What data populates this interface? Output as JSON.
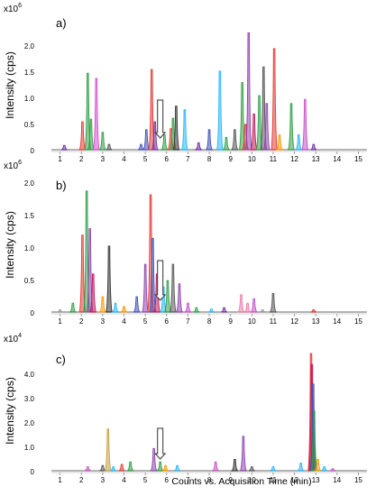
{
  "chart_data": {
    "type": "line",
    "xlabel": "Counts vs. Acquisition Time (min)",
    "x_ticks": [
      "1",
      "2",
      "3",
      "4",
      "5",
      "6",
      "7",
      "8",
      "9",
      "10",
      "11",
      "12",
      "13",
      "14",
      "15"
    ],
    "xlim": [
      0,
      15.7
    ],
    "panels": [
      {
        "label": "a)",
        "multiplier_base": "x10",
        "multiplier_exp": "6",
        "ylabel": "Intensity (cps)",
        "ylim": [
          0,
          2.5
        ],
        "y_ticks": [
          "0",
          "0.5",
          "1.0",
          "1.5",
          "2.0"
        ],
        "marker_time": 5.7,
        "peaks": [
          {
            "t": 1.2,
            "h": 0.1,
            "c": "#7030a0"
          },
          {
            "t": 2.05,
            "h": 0.55,
            "c": "#e53935"
          },
          {
            "t": 2.3,
            "h": 1.48,
            "c": "#2e9e44"
          },
          {
            "t": 2.45,
            "h": 0.6,
            "c": "#2e9e44"
          },
          {
            "t": 2.7,
            "h": 1.38,
            "c": "#d64fd0"
          },
          {
            "t": 3.0,
            "h": 0.35,
            "c": "#2e9e44"
          },
          {
            "t": 3.3,
            "h": 0.12,
            "c": "#555555"
          },
          {
            "t": 4.8,
            "h": 0.12,
            "c": "#3f51b5"
          },
          {
            "t": 5.05,
            "h": 0.4,
            "c": "#3f51b5"
          },
          {
            "t": 5.3,
            "h": 1.55,
            "c": "#e53935"
          },
          {
            "t": 5.45,
            "h": 0.55,
            "c": "#7030a0"
          },
          {
            "t": 5.9,
            "h": 0.3,
            "c": "#2e9e44"
          },
          {
            "t": 6.2,
            "h": 0.42,
            "c": "#e53935"
          },
          {
            "t": 6.3,
            "h": 0.62,
            "c": "#2e9e44"
          },
          {
            "t": 6.45,
            "h": 0.85,
            "c": "#333333"
          },
          {
            "t": 6.85,
            "h": 0.78,
            "c": "#29b6f6"
          },
          {
            "t": 7.5,
            "h": 0.15,
            "c": "#7030a0"
          },
          {
            "t": 8.0,
            "h": 0.4,
            "c": "#3f51b5"
          },
          {
            "t": 8.5,
            "h": 1.52,
            "c": "#29b6f6"
          },
          {
            "t": 8.8,
            "h": 0.25,
            "c": "#2e9e44"
          },
          {
            "t": 9.2,
            "h": 0.4,
            "c": "#555555"
          },
          {
            "t": 9.55,
            "h": 1.3,
            "c": "#2e9e44"
          },
          {
            "t": 9.7,
            "h": 0.5,
            "c": "#e53935"
          },
          {
            "t": 9.85,
            "h": 2.25,
            "c": "#8e44ad"
          },
          {
            "t": 10.1,
            "h": 0.7,
            "c": "#c2185b"
          },
          {
            "t": 10.35,
            "h": 1.05,
            "c": "#2e9e44"
          },
          {
            "t": 10.55,
            "h": 1.6,
            "c": "#555555"
          },
          {
            "t": 10.7,
            "h": 0.9,
            "c": "#8e44ad"
          },
          {
            "t": 11.05,
            "h": 1.95,
            "c": "#e53935"
          },
          {
            "t": 11.3,
            "h": 0.3,
            "c": "#ff9800"
          },
          {
            "t": 11.85,
            "h": 0.9,
            "c": "#2e9e44"
          },
          {
            "t": 12.2,
            "h": 0.3,
            "c": "#29b6f6"
          },
          {
            "t": 12.5,
            "h": 0.98,
            "c": "#c94fc9"
          },
          {
            "t": 12.9,
            "h": 0.12,
            "c": "#7030a0"
          }
        ]
      },
      {
        "label": "b)",
        "multiplier_base": "x10",
        "multiplier_exp": "6",
        "ylabel": "Intensity (cps)",
        "ylim": [
          0,
          2.1
        ],
        "y_ticks": [
          "0",
          "0.5",
          "1.0",
          "1.5",
          "2.0"
        ],
        "marker_time": 5.7,
        "peaks": [
          {
            "t": 1.0,
            "h": 0.05,
            "c": "#999999"
          },
          {
            "t": 1.6,
            "h": 0.15,
            "c": "#2e9e44"
          },
          {
            "t": 2.05,
            "h": 1.2,
            "c": "#e53935"
          },
          {
            "t": 2.25,
            "h": 1.88,
            "c": "#2e9e44"
          },
          {
            "t": 2.4,
            "h": 1.3,
            "c": "#8e44ad"
          },
          {
            "t": 2.55,
            "h": 0.6,
            "c": "#c2185b"
          },
          {
            "t": 3.0,
            "h": 0.25,
            "c": "#ff9800"
          },
          {
            "t": 3.3,
            "h": 1.03,
            "c": "#333333"
          },
          {
            "t": 3.6,
            "h": 0.15,
            "c": "#29b6f6"
          },
          {
            "t": 4.0,
            "h": 0.1,
            "c": "#ff9800"
          },
          {
            "t": 4.6,
            "h": 0.25,
            "c": "#3f51b5"
          },
          {
            "t": 5.0,
            "h": 0.75,
            "c": "#8e44ad"
          },
          {
            "t": 5.25,
            "h": 1.82,
            "c": "#e53935"
          },
          {
            "t": 5.35,
            "h": 1.15,
            "c": "#3f51b5"
          },
          {
            "t": 5.55,
            "h": 0.6,
            "c": "#c2185b"
          },
          {
            "t": 5.85,
            "h": 0.4,
            "c": "#29b6f6"
          },
          {
            "t": 6.05,
            "h": 0.5,
            "c": "#2e9e44"
          },
          {
            "t": 6.3,
            "h": 0.75,
            "c": "#555555"
          },
          {
            "t": 6.6,
            "h": 0.45,
            "c": "#8e44ad"
          },
          {
            "t": 7.0,
            "h": 0.15,
            "c": "#c94fc9"
          },
          {
            "t": 7.4,
            "h": 0.08,
            "c": "#2e9e44"
          },
          {
            "t": 8.1,
            "h": 0.06,
            "c": "#29b6f6"
          },
          {
            "t": 8.7,
            "h": 0.08,
            "c": "#7030a0"
          },
          {
            "t": 9.5,
            "h": 0.28,
            "c": "#e87ea8"
          },
          {
            "t": 9.8,
            "h": 0.15,
            "c": "#e87ea8"
          },
          {
            "t": 10.1,
            "h": 0.22,
            "c": "#c94fc9"
          },
          {
            "t": 10.5,
            "h": 0.05,
            "c": "#999999"
          },
          {
            "t": 11.0,
            "h": 0.3,
            "c": "#555555"
          },
          {
            "t": 12.9,
            "h": 0.05,
            "c": "#e53935"
          }
        ]
      },
      {
        "label": "c)",
        "multiplier_base": "x10",
        "multiplier_exp": "4",
        "ylabel": "Intensity (cps)",
        "ylim": [
          0,
          5.0
        ],
        "y_ticks": [
          "0",
          "1.0",
          "2.0",
          "3.0",
          "4.0"
        ],
        "marker_time": 5.7,
        "peaks": [
          {
            "t": 2.3,
            "h": 0.2,
            "c": "#c94fc9"
          },
          {
            "t": 3.0,
            "h": 0.25,
            "c": "#555555"
          },
          {
            "t": 3.25,
            "h": 1.75,
            "c": "#c8a040"
          },
          {
            "t": 3.5,
            "h": 0.2,
            "c": "#29b6f6"
          },
          {
            "t": 3.9,
            "h": 0.3,
            "c": "#e53935"
          },
          {
            "t": 4.3,
            "h": 0.4,
            "c": "#2e9e44"
          },
          {
            "t": 5.4,
            "h": 0.95,
            "c": "#8e44ad"
          },
          {
            "t": 5.7,
            "h": 0.4,
            "c": "#2e9e44"
          },
          {
            "t": 5.95,
            "h": 0.25,
            "c": "#ff9800"
          },
          {
            "t": 6.5,
            "h": 0.25,
            "c": "#29b6f6"
          },
          {
            "t": 8.3,
            "h": 0.4,
            "c": "#c94fc9"
          },
          {
            "t": 9.2,
            "h": 0.5,
            "c": "#333333"
          },
          {
            "t": 9.6,
            "h": 1.45,
            "c": "#8e44ad"
          },
          {
            "t": 10.0,
            "h": 0.2,
            "c": "#555555"
          },
          {
            "t": 11.0,
            "h": 0.2,
            "c": "#29b6f6"
          },
          {
            "t": 12.3,
            "h": 0.35,
            "c": "#29b6f6"
          },
          {
            "t": 12.78,
            "h": 4.85,
            "c": "#e53935"
          },
          {
            "t": 12.82,
            "h": 4.4,
            "c": "#c2185b"
          },
          {
            "t": 12.88,
            "h": 3.6,
            "c": "#3f51b5"
          },
          {
            "t": 12.92,
            "h": 2.5,
            "c": "#2e9e44"
          },
          {
            "t": 13.1,
            "h": 0.5,
            "c": "#ff9800"
          },
          {
            "t": 13.4,
            "h": 0.2,
            "c": "#29b6f6"
          },
          {
            "t": 13.8,
            "h": 0.12,
            "c": "#c94fc9"
          }
        ]
      }
    ]
  }
}
